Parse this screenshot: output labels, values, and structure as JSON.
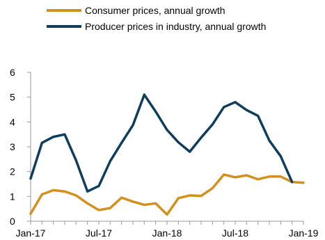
{
  "chart_data": {
    "type": "line",
    "title": "",
    "xlabel": "",
    "ylabel": "",
    "ylim": [
      0,
      6
    ],
    "yticks": [
      0,
      1,
      2,
      3,
      4,
      5,
      6
    ],
    "grid": false,
    "legend_position": "top",
    "x": [
      "Jan-17",
      "Feb-17",
      "Mar-17",
      "Apr-17",
      "May-17",
      "Jun-17",
      "Jul-17",
      "Aug-17",
      "Sep-17",
      "Oct-17",
      "Nov-17",
      "Dec-17",
      "Jan-18",
      "Feb-18",
      "Mar-18",
      "Apr-18",
      "May-18",
      "Jun-18",
      "Jul-18",
      "Aug-18",
      "Sep-18",
      "Oct-18",
      "Nov-18",
      "Dec-18",
      "Jan-19"
    ],
    "x_tick_labels": [
      {
        "index": 0,
        "label": "Jan-17"
      },
      {
        "index": 6,
        "label": "Jul-17"
      },
      {
        "index": 12,
        "label": "Jan-18"
      },
      {
        "index": 18,
        "label": "Jul-18"
      },
      {
        "index": 24,
        "label": "Jan-19"
      }
    ],
    "series": [
      {
        "name": "Consumer prices, annual growth",
        "color": "#D4901C",
        "values": [
          0.3,
          1.08,
          1.25,
          1.2,
          1.04,
          0.72,
          0.45,
          0.53,
          0.95,
          0.79,
          0.66,
          0.72,
          0.27,
          0.93,
          1.04,
          1.02,
          1.33,
          1.88,
          1.77,
          1.85,
          1.69,
          1.8,
          1.8,
          1.58,
          1.55
        ]
      },
      {
        "name": "Producer prices in industry, annual growth",
        "color": "#0E3D5E",
        "values": [
          1.72,
          3.16,
          3.4,
          3.5,
          2.45,
          1.2,
          1.42,
          2.42,
          3.16,
          3.87,
          5.1,
          4.42,
          3.68,
          3.18,
          2.8,
          3.37,
          3.9,
          4.6,
          4.8,
          4.48,
          4.25,
          3.25,
          2.62,
          1.58,
          null
        ]
      }
    ]
  }
}
